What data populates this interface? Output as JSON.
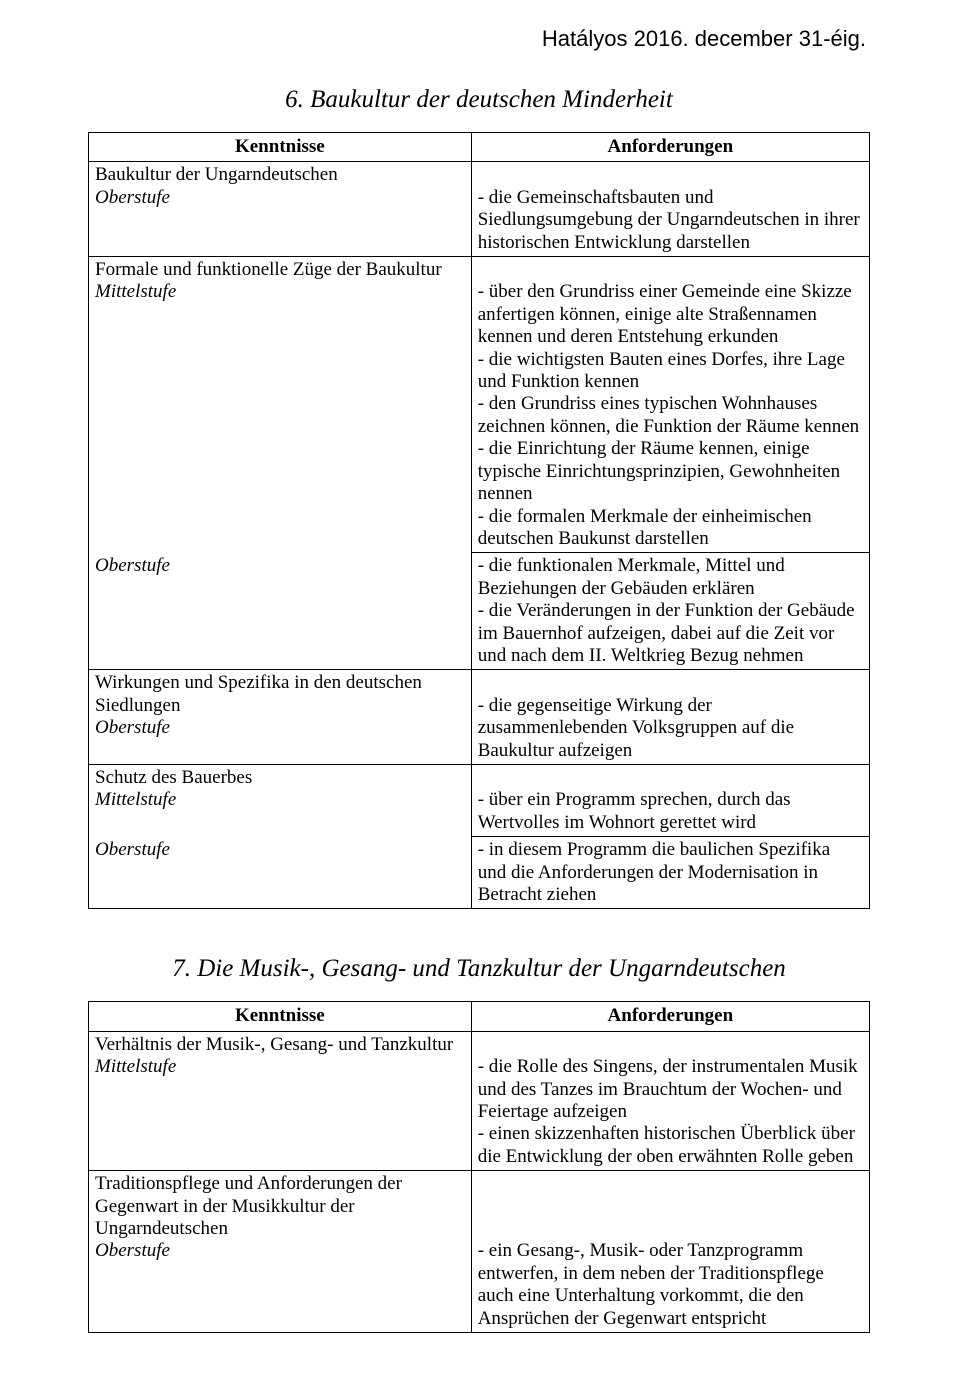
{
  "header": {
    "note": "Hatályos 2016. december 31-éig."
  },
  "section6": {
    "title": "6. Baukultur der deutschen Minderheit",
    "col_left": "Kenntnisse",
    "col_right": "Anforderungen",
    "rows": [
      {
        "left_topic": "Baukultur der Ungarndeutschen",
        "left_level": "Oberstufe",
        "right": " - die Gemeinschaftsbauten und Siedlungsumgebung der Ungarndeutschen in ihrer historischen Entwicklung darstellen"
      },
      {
        "left_topic": "Formale und funktionelle Züge der Baukultur",
        "left_level": "Mittelstufe",
        "right": " - über den Grundriss einer Gemeinde eine Skizze anfertigen können, einige alte Straßennamen kennen und deren Entstehung erkunden\n- die wichtigsten Bauten eines Dorfes, ihre Lage und Funktion kennen\n- den Grundriss eines typischen Wohnhauses zeichnen können, die Funktion der Räume kennen\n- die Einrichtung der Räume kennen, einige typische Einrichtungsprinzipien, Gewohnheiten nennen\n- die formalen Merkmale der einheimischen deutschen Baukunst darstellen"
      },
      {
        "left_level_only": "Oberstufe",
        "right": " - die funktionalen Merkmale, Mittel und Beziehungen der Gebäuden erklären\n- die Veränderungen in der Funktion der Gebäude im Bauernhof aufzeigen, dabei auf die Zeit vor und nach dem II. Weltkrieg Bezug nehmen"
      },
      {
        "left_topic": "Wirkungen und Spezifika in den deutschen Siedlungen",
        "left_level": "Oberstufe",
        "right": " - die gegenseitige Wirkung der zusammenlebenden Volksgruppen auf die Baukultur aufzeigen"
      },
      {
        "left_topic": "Schutz des Bauerbes",
        "left_level": "Mittelstufe",
        "right": " - über ein Programm sprechen, durch das Wertvolles im Wohnort gerettet wird"
      },
      {
        "left_level_only": "Oberstufe",
        "right": " - in diesem Programm die baulichen Spezifika und die Anforderungen der Modernisation in Betracht ziehen"
      }
    ]
  },
  "section7": {
    "title": "7. Die Musik-, Gesang- und Tanzkultur der Ungarndeutschen",
    "col_left": "Kenntnisse",
    "col_right": "Anforderungen",
    "rows": [
      {
        "left_topic": "Verhältnis der Musik-, Gesang- und Tanzkultur",
        "left_level": "Mittelstufe",
        "right": " - die Rolle des Singens, der instrumentalen Musik und des Tanzes im Brauchtum der Wochen- und Feiertage aufzeigen\n- einen skizzenhaften historischen Überblick über die Entwicklung der oben erwähnten Rolle geben"
      },
      {
        "left_topic": "Traditionspflege und Anforderungen der Gegenwart in der Musikkultur der Ungarndeutschen",
        "left_level": "Oberstufe",
        "right": " - ein Gesang-, Musik- oder Tanzprogramm entwerfen, in dem neben der Traditionspflege auch eine Unterhaltung vorkommt, die den Ansprüchen der Gegenwart entspricht"
      }
    ]
  }
}
